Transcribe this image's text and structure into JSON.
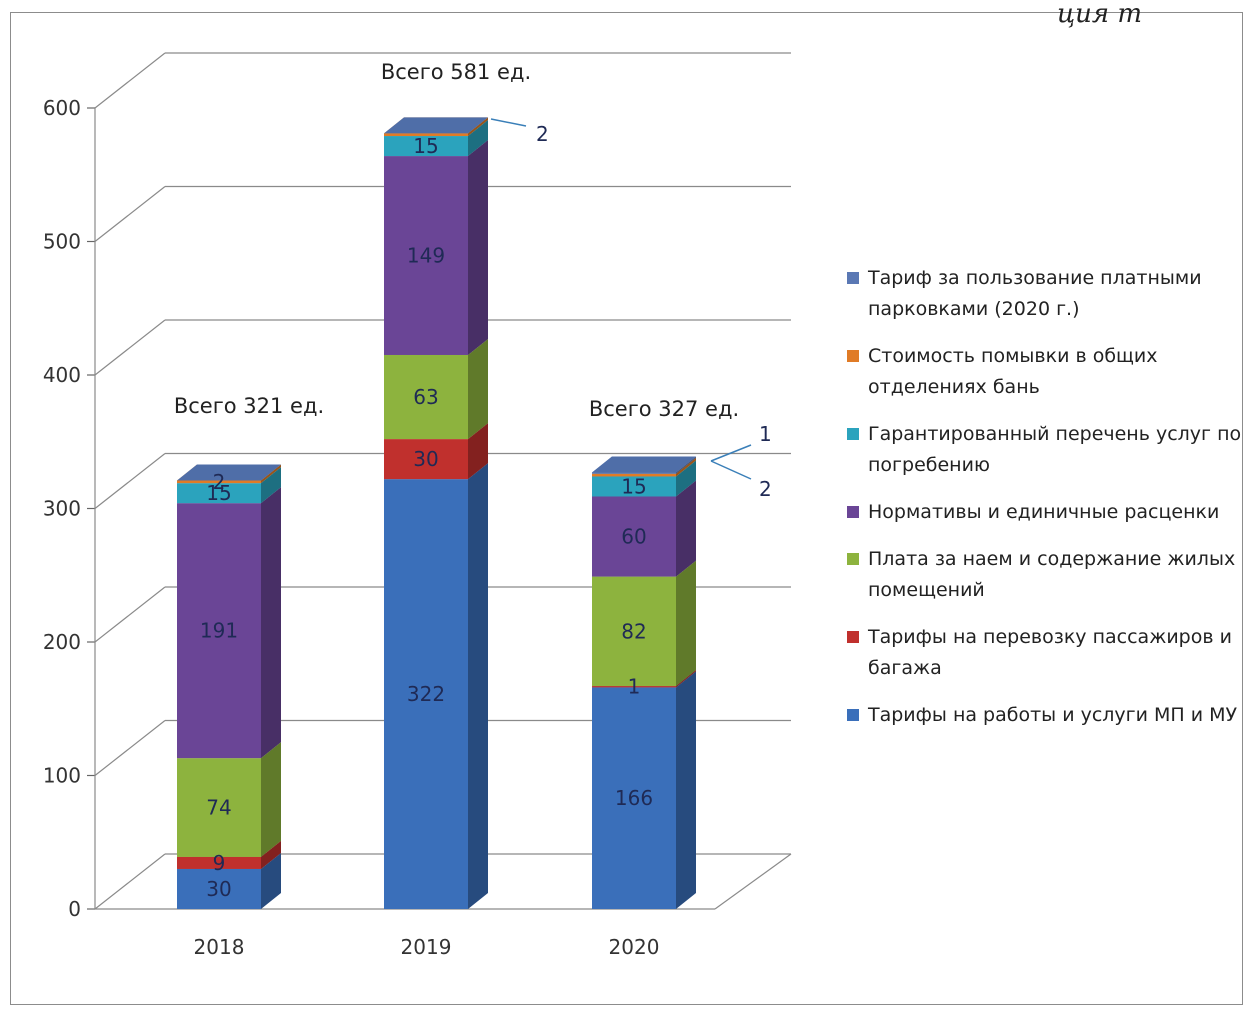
{
  "header_fragment": "ция т",
  "chart_data": {
    "type": "bar",
    "stacked": true,
    "categories": [
      "2018",
      "2019",
      "2020"
    ],
    "ylim": [
      0,
      600
    ],
    "yticks": [
      0,
      100,
      200,
      300,
      400,
      500,
      600
    ],
    "totals": [
      "Всего 321 ед.",
      "Всего 581 ед.",
      "Всего 327 ед."
    ],
    "series": [
      {
        "name": "Тарифы на работы и услуги МП и МУ",
        "color": "#3a6fba",
        "values": [
          30,
          322,
          166
        ]
      },
      {
        "name": "Тарифы на перевозку пассажиров и багажа",
        "color": "#c0302d",
        "values": [
          9,
          30,
          1
        ]
      },
      {
        "name": "Плата за наем и содержание жилых помещений",
        "color": "#8db33e",
        "values": [
          74,
          63,
          82
        ]
      },
      {
        "name": "Нормативы и единичные расценки",
        "color": "#6a4596",
        "values": [
          191,
          149,
          60
        ]
      },
      {
        "name": "Гарантированный перечень услуг по погребению",
        "color": "#2ba3bd",
        "values": [
          15,
          15,
          15
        ]
      },
      {
        "name": "Стоимость помывки в общих отделениях бань",
        "color": "#e07b26",
        "values": [
          2,
          2,
          2
        ]
      },
      {
        "name": "Тариф за пользование платными парковками (2020 г.)",
        "color": "#5a78b4",
        "values": [
          0,
          0,
          1
        ]
      }
    ],
    "legend_position": "right",
    "grid": true,
    "callouts": [
      {
        "category": "2019",
        "text": "2"
      },
      {
        "category": "2020",
        "text": "1"
      },
      {
        "category": "2020",
        "text": "2"
      }
    ],
    "data_labels": [
      [
        "30",
        "9",
        "74",
        "191",
        "15",
        "2",
        ""
      ],
      [
        "322",
        "30",
        "63",
        "149",
        "15",
        "",
        ""
      ],
      [
        "166",
        "1",
        "82",
        "60",
        "15",
        "",
        ""
      ]
    ]
  }
}
